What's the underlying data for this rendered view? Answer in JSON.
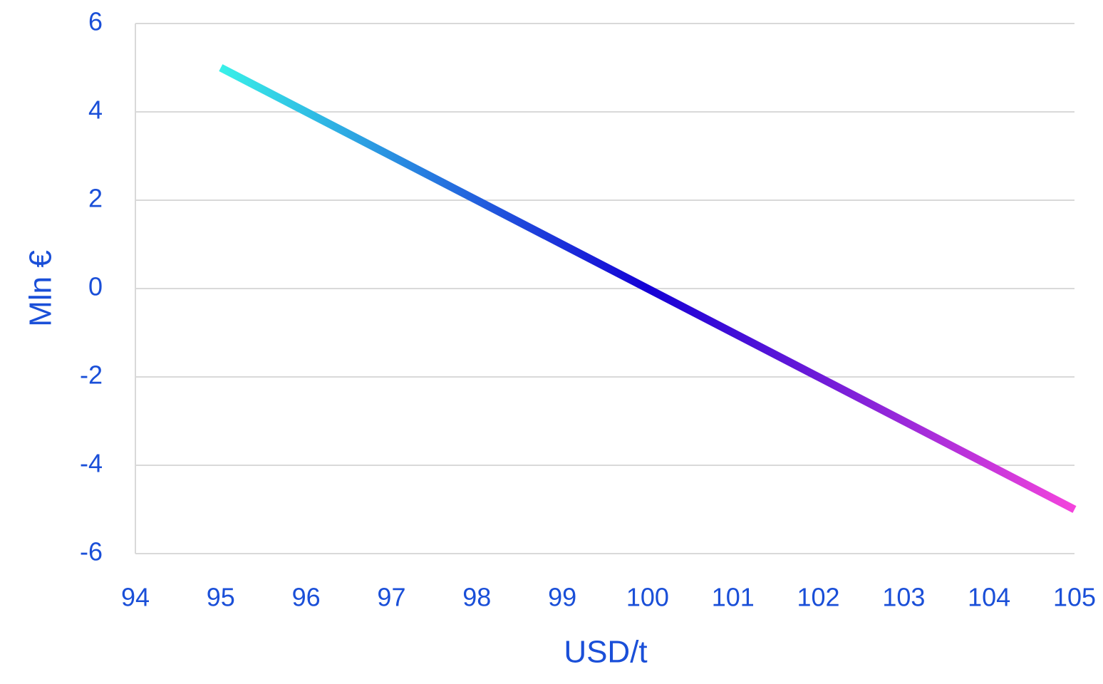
{
  "chart_data": {
    "type": "line",
    "x": [
      95,
      96,
      97,
      98,
      99,
      100,
      101,
      102,
      103,
      104,
      105
    ],
    "values": [
      5,
      4,
      3,
      2,
      1,
      0,
      -1,
      -2,
      -3,
      -4,
      -5
    ],
    "gradient": [
      "#38f0e8",
      "#1400d6",
      "#f444dc"
    ],
    "xlim": [
      94,
      105
    ],
    "xticks": [
      94,
      95,
      96,
      97,
      98,
      99,
      100,
      101,
      102,
      103,
      104,
      105
    ],
    "ylim": [
      -6,
      6
    ],
    "yticks": [
      -6,
      -4,
      -2,
      0,
      2,
      4,
      6
    ],
    "xlabel": "USD/t",
    "ylabel": "Mln €",
    "grid": true
  }
}
